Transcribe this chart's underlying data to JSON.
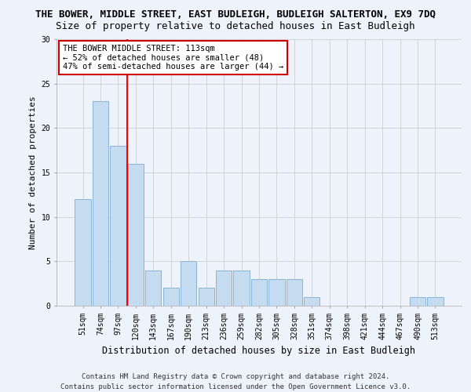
{
  "title": "THE BOWER, MIDDLE STREET, EAST BUDLEIGH, BUDLEIGH SALTERTON, EX9 7DQ",
  "subtitle": "Size of property relative to detached houses in East Budleigh",
  "xlabel": "Distribution of detached houses by size in East Budleigh",
  "ylabel": "Number of detached properties",
  "categories": [
    "51sqm",
    "74sqm",
    "97sqm",
    "120sqm",
    "143sqm",
    "167sqm",
    "190sqm",
    "213sqm",
    "236sqm",
    "259sqm",
    "282sqm",
    "305sqm",
    "328sqm",
    "351sqm",
    "374sqm",
    "398sqm",
    "421sqm",
    "444sqm",
    "467sqm",
    "490sqm",
    "513sqm"
  ],
  "values": [
    12,
    23,
    18,
    16,
    4,
    2,
    5,
    2,
    4,
    4,
    3,
    3,
    3,
    1,
    0,
    0,
    0,
    0,
    0,
    1,
    1
  ],
  "bar_color": "#c5dcf0",
  "bar_edge_color": "#8ab4d4",
  "red_line_x": 2.5,
  "annotation_title": "THE BOWER MIDDLE STREET: 113sqm",
  "annotation_line1": "← 52% of detached houses are smaller (48)",
  "annotation_line2": "47% of semi-detached houses are larger (44) →",
  "annotation_box_color": "#ffffff",
  "annotation_box_edge_color": "#cc0000",
  "ylim": [
    0,
    30
  ],
  "yticks": [
    0,
    5,
    10,
    15,
    20,
    25,
    30
  ],
  "footer1": "Contains HM Land Registry data © Crown copyright and database right 2024.",
  "footer2": "Contains public sector information licensed under the Open Government Licence v3.0.",
  "background_color": "#eef2fb",
  "grid_color": "#c8c8c8",
  "title_fontsize": 9,
  "subtitle_fontsize": 9,
  "xlabel_fontsize": 8.5,
  "ylabel_fontsize": 8,
  "tick_fontsize": 7,
  "annotation_fontsize": 7.5,
  "footer_fontsize": 6.5
}
